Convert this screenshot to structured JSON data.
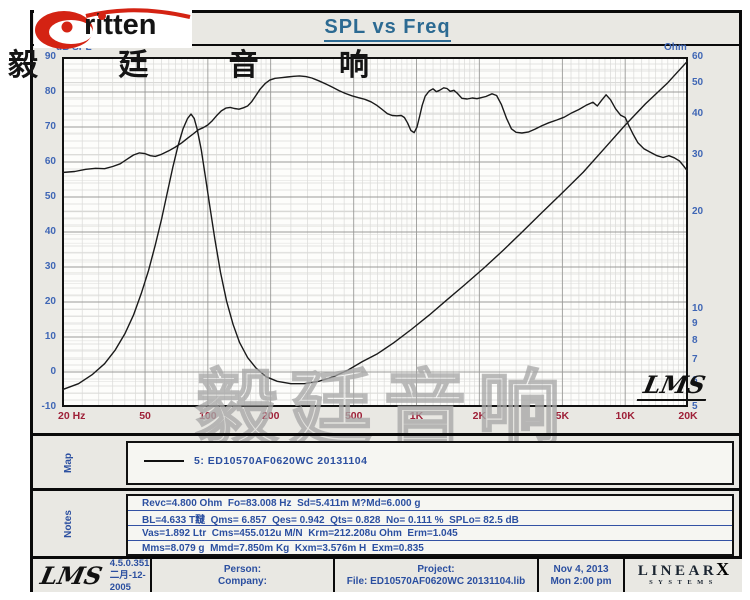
{
  "brand": {
    "name": "ritten",
    "chinese_name": "毅 廷 音 响"
  },
  "title": "SPL vs Freq",
  "watermark": "毅廷音响",
  "lms_script_logo": "LMS",
  "chart_data": {
    "type": "line",
    "title": "SPL vs Freq",
    "x_axis": {
      "scale": "log",
      "min": 20,
      "max": 20000,
      "ticks": [
        {
          "f": 20,
          "label": "20 Hz"
        },
        {
          "f": 50,
          "label": "50"
        },
        {
          "f": 100,
          "label": "100"
        },
        {
          "f": 200,
          "label": "200"
        },
        {
          "f": 500,
          "label": "500"
        },
        {
          "f": 1000,
          "label": "1K"
        },
        {
          "f": 2000,
          "label": "2K"
        },
        {
          "f": 5000,
          "label": "5K"
        },
        {
          "f": 10000,
          "label": "10K"
        },
        {
          "f": 20000,
          "label": "20K"
        }
      ]
    },
    "y_left": {
      "label": "dB SPL",
      "scale": "linear",
      "min": -10,
      "max": 90,
      "major_step": 10,
      "minor_step": 2,
      "ticks": [
        90,
        80,
        70,
        60,
        50,
        40,
        30,
        20,
        10,
        0,
        -10
      ]
    },
    "y_right": {
      "label": "Ohm",
      "scale": "log",
      "min": 5,
      "max": 60,
      "ticks": [
        60,
        50,
        40,
        30,
        20,
        10,
        9,
        8,
        7,
        6,
        5
      ]
    },
    "series": [
      {
        "name": "SPL",
        "axis": "left",
        "color": "#1a1a1a",
        "points": [
          [
            20,
            57
          ],
          [
            23,
            57.3
          ],
          [
            26,
            57.9
          ],
          [
            29,
            58.2
          ],
          [
            32,
            58.1
          ],
          [
            35,
            58.7
          ],
          [
            38,
            59.5
          ],
          [
            41,
            60.8
          ],
          [
            44,
            62.0
          ],
          [
            47,
            62.6
          ],
          [
            50,
            62.4
          ],
          [
            53,
            61.8
          ],
          [
            56,
            61.6
          ],
          [
            60,
            62.2
          ],
          [
            65,
            63.2
          ],
          [
            70,
            64.3
          ],
          [
            75,
            65.5
          ],
          [
            80,
            66.8
          ],
          [
            85,
            68.0
          ],
          [
            90,
            69.2
          ],
          [
            95,
            69.8
          ],
          [
            100,
            70.6
          ],
          [
            105,
            71.8
          ],
          [
            110,
            73.2
          ],
          [
            116,
            74.6
          ],
          [
            122,
            75.4
          ],
          [
            128,
            75.6
          ],
          [
            134,
            75.3
          ],
          [
            141,
            75.1
          ],
          [
            148,
            75.5
          ],
          [
            155,
            76.0
          ],
          [
            162,
            77.2
          ],
          [
            170,
            79.0
          ],
          [
            178,
            80.8
          ],
          [
            188,
            82.4
          ],
          [
            198,
            83.4
          ],
          [
            210,
            83.9
          ],
          [
            225,
            84.1
          ],
          [
            240,
            84.3
          ],
          [
            258,
            84.5
          ],
          [
            275,
            84.6
          ],
          [
            295,
            84.4
          ],
          [
            315,
            84.0
          ],
          [
            340,
            83.2
          ],
          [
            368,
            82.3
          ],
          [
            395,
            81.4
          ],
          [
            425,
            80.4
          ],
          [
            455,
            79.6
          ],
          [
            490,
            78.9
          ],
          [
            525,
            78.4
          ],
          [
            565,
            77.9
          ],
          [
            605,
            77.2
          ],
          [
            645,
            76.2
          ],
          [
            685,
            75.0
          ],
          [
            725,
            73.8
          ],
          [
            765,
            73.3
          ],
          [
            805,
            73.2
          ],
          [
            845,
            73.3
          ],
          [
            875,
            72.7
          ],
          [
            905,
            71.2
          ],
          [
            940,
            69.0
          ],
          [
            975,
            68.4
          ],
          [
            1005,
            70.0
          ],
          [
            1035,
            73.0
          ],
          [
            1065,
            76.2
          ],
          [
            1100,
            78.8
          ],
          [
            1150,
            80.3
          ],
          [
            1200,
            80.9
          ],
          [
            1245,
            80.1
          ],
          [
            1290,
            80.5
          ],
          [
            1350,
            81.2
          ],
          [
            1400,
            81.0
          ],
          [
            1450,
            80.2
          ],
          [
            1510,
            80.5
          ],
          [
            1570,
            79.6
          ],
          [
            1650,
            78.2
          ],
          [
            1750,
            78.0
          ],
          [
            1850,
            78.3
          ],
          [
            1950,
            78.1
          ],
          [
            2050,
            78.4
          ],
          [
            2150,
            78.7
          ],
          [
            2300,
            79.5
          ],
          [
            2420,
            79.0
          ],
          [
            2550,
            76.5
          ],
          [
            2700,
            72.5
          ],
          [
            2850,
            69.5
          ],
          [
            3000,
            68.5
          ],
          [
            3200,
            68.3
          ],
          [
            3450,
            68.6
          ],
          [
            3700,
            69.4
          ],
          [
            4000,
            70.4
          ],
          [
            4300,
            71.2
          ],
          [
            4700,
            72.0
          ],
          [
            5100,
            72.8
          ],
          [
            5500,
            73.9
          ],
          [
            6000,
            75.0
          ],
          [
            6500,
            76.2
          ],
          [
            7000,
            77.1
          ],
          [
            7350,
            76.0
          ],
          [
            7700,
            77.6
          ],
          [
            8100,
            79.2
          ],
          [
            8500,
            77.8
          ],
          [
            9000,
            75.2
          ],
          [
            9500,
            73.4
          ],
          [
            10000,
            72.7
          ],
          [
            10400,
            70.5
          ],
          [
            10900,
            68.0
          ],
          [
            11500,
            65.5
          ],
          [
            12300,
            63.8
          ],
          [
            13200,
            62.8
          ],
          [
            14200,
            61.8
          ],
          [
            15200,
            61.3
          ],
          [
            16200,
            61.8
          ],
          [
            17200,
            61.2
          ],
          [
            18200,
            60.3
          ],
          [
            19100,
            58.8
          ],
          [
            20000,
            57.2
          ]
        ]
      },
      {
        "name": "Impedance",
        "axis": "right",
        "color": "#1a1a1a",
        "points": [
          [
            20,
            5.65
          ],
          [
            24,
            5.9
          ],
          [
            28,
            6.3
          ],
          [
            32,
            6.8
          ],
          [
            36,
            7.5
          ],
          [
            40,
            8.4
          ],
          [
            44,
            9.6
          ],
          [
            48,
            11.2
          ],
          [
            52,
            13.2
          ],
          [
            56,
            15.8
          ],
          [
            60,
            19.0
          ],
          [
            64,
            23.0
          ],
          [
            68,
            27.5
          ],
          [
            72,
            32.0
          ],
          [
            76,
            36.0
          ],
          [
            80,
            38.8
          ],
          [
            83,
            40.0
          ],
          [
            86,
            38.8
          ],
          [
            89,
            35.8
          ],
          [
            93,
            31.0
          ],
          [
            97,
            26.0
          ],
          [
            102,
            21.0
          ],
          [
            108,
            16.5
          ],
          [
            115,
            13.0
          ],
          [
            123,
            10.6
          ],
          [
            132,
            9.0
          ],
          [
            142,
            7.9
          ],
          [
            155,
            7.1
          ],
          [
            170,
            6.6
          ],
          [
            190,
            6.2
          ],
          [
            215,
            6.0
          ],
          [
            250,
            5.9
          ],
          [
            290,
            5.9
          ],
          [
            340,
            6.0
          ],
          [
            400,
            6.2
          ],
          [
            470,
            6.5
          ],
          [
            550,
            6.9
          ],
          [
            650,
            7.3
          ],
          [
            780,
            7.9
          ],
          [
            950,
            8.7
          ],
          [
            1150,
            9.6
          ],
          [
            1400,
            10.7
          ],
          [
            1700,
            11.9
          ],
          [
            2100,
            13.4
          ],
          [
            2600,
            15.2
          ],
          [
            3200,
            17.3
          ],
          [
            4000,
            19.9
          ],
          [
            5000,
            22.9
          ],
          [
            6300,
            26.5
          ],
          [
            8000,
            31.5
          ],
          [
            10000,
            37.0
          ],
          [
            12500,
            43.0
          ],
          [
            16000,
            50.0
          ],
          [
            20000,
            58.5
          ]
        ]
      }
    ],
    "grid": true,
    "legend_position": "map-band-below-chart"
  },
  "map": {
    "label": "Map",
    "legend": "5: ED10570AF0620WC   20131104"
  },
  "notes": {
    "label": "Notes",
    "lines": [
      "Revc=4.800 Ohm  Fo=83.008 Hz  Sd=5.411m M?Md=6.000 g",
      "BL=4.633 T靆  Qms= 6.857  Qes= 0.942  Qts= 0.828  No= 0.111 %  SPLo= 82.5 dB",
      "Vas=1.892 Ltr  Cms=455.012u M/N  Krm=212.208u Ohm  Erm=1.045",
      "Mms=8.079 g  Mmd=7.850m Kg  Kxm=3.576m H  Exm=0.835"
    ]
  },
  "footer": {
    "version": "4.5.0.351",
    "version_date": "二月-12-2005",
    "person_label": "Person:",
    "company_label": "Company:",
    "project_label": "Project:",
    "file_label": "File: ED10570AF0620WC 20131104.lib",
    "date": "Nov  4, 2013",
    "time": "Mon  2:00 pm",
    "linearx": "LINEAR",
    "linearx_x": "X",
    "systems": "SYSTEMS"
  },
  "colors": {
    "frame_bg": "#e9e8e3",
    "plot_bg": "#fdfdfb",
    "title_blue": "#2c6a92",
    "tick_blue": "#3f66b5",
    "freq_red": "#9e2038",
    "notes_blue": "#2b4fa0",
    "curve": "#1a1a1a",
    "logo_red": "#d42313",
    "grid_minor": "#dadad8",
    "grid_major": "#9a9a98",
    "grid_ohm": "#e4e4e1"
  }
}
